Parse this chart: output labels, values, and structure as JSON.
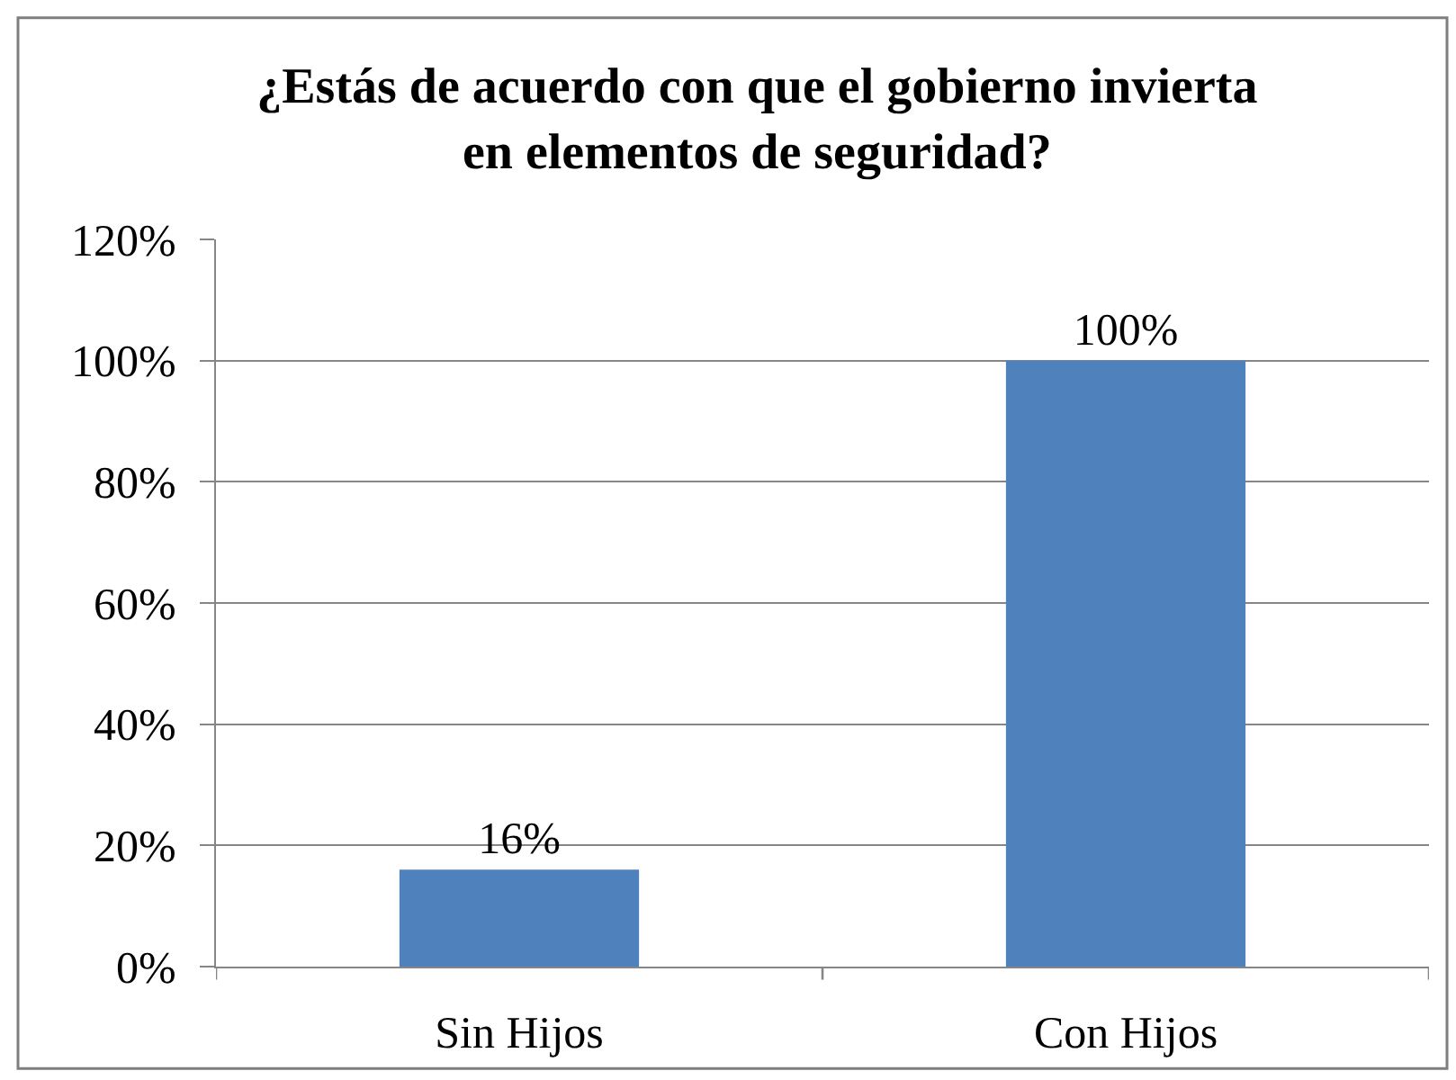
{
  "chart_data": {
    "type": "bar",
    "title": "¿Estás de acuerdo con que el gobierno invierta\nen elementos de seguridad?",
    "categories": [
      "Sin Hijos",
      "Con Hijos"
    ],
    "values": [
      16,
      100
    ],
    "color": "#4f81bd",
    "value_labels": [
      "16%",
      "100%"
    ],
    "ylim": [
      0,
      120
    ],
    "yticks": [
      {
        "value": 0,
        "label": "0%"
      },
      {
        "value": 20,
        "label": "20%"
      },
      {
        "value": 40,
        "label": "40%"
      },
      {
        "value": 60,
        "label": "60%"
      },
      {
        "value": 80,
        "label": "80%"
      },
      {
        "value": 100,
        "label": "100%"
      },
      {
        "value": 120,
        "label": "120%"
      }
    ],
    "grid": "y"
  }
}
